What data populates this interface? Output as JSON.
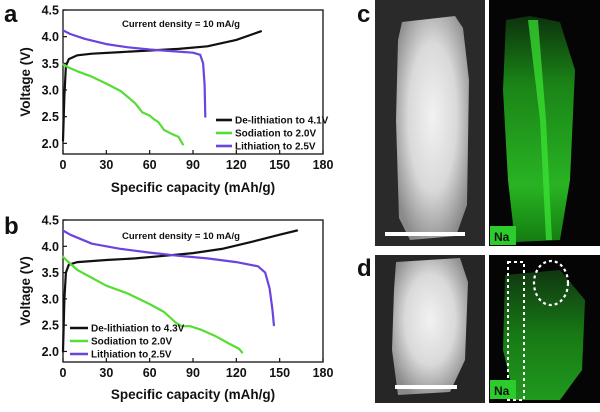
{
  "panels": {
    "a": {
      "letter": "a"
    },
    "b": {
      "letter": "b"
    },
    "c": {
      "letter": "c"
    },
    "d": {
      "letter": "d"
    }
  },
  "colors": {
    "delithiation": "#111111",
    "sodiation": "#55dd33",
    "lithiation": "#6a44dd",
    "na_map": "#22c81e",
    "na_tag": "#2bcc2b"
  },
  "micrographs": {
    "c": {
      "element_tag": "Na"
    },
    "d": {
      "element_tag": "Na"
    }
  },
  "chart_data": [
    {
      "id": "a",
      "type": "line",
      "annotation": "Current density = 10 mA/g",
      "xlabel": "Specific capacity (mAh/g)",
      "ylabel": "Voltage (V)",
      "xlim": [
        0,
        180
      ],
      "ylim": [
        1.8,
        4.5
      ],
      "xticks": [
        0,
        30,
        60,
        90,
        120,
        150,
        180
      ],
      "yticks": [
        2.0,
        2.5,
        3.0,
        3.5,
        4.0,
        4.5
      ],
      "ytick_labels": [
        "2.0",
        "2.5",
        "3.0",
        "3.5",
        "4.0",
        "4.5"
      ],
      "legend_position": "lower-right",
      "series": [
        {
          "name": "De-lithiation to 4.1V",
          "color_key": "delithiation",
          "points": [
            [
              0,
              2.05
            ],
            [
              1,
              2.9
            ],
            [
              2,
              3.45
            ],
            [
              4,
              3.58
            ],
            [
              10,
              3.65
            ],
            [
              20,
              3.68
            ],
            [
              40,
              3.71
            ],
            [
              60,
              3.74
            ],
            [
              80,
              3.77
            ],
            [
              100,
              3.82
            ],
            [
              120,
              3.94
            ],
            [
              137,
              4.1
            ]
          ]
        },
        {
          "name": "Sodiation to 2.0V",
          "color_key": "sodiation",
          "points": [
            [
              0,
              3.48
            ],
            [
              4,
              3.42
            ],
            [
              10,
              3.35
            ],
            [
              20,
              3.25
            ],
            [
              30,
              3.12
            ],
            [
              40,
              2.98
            ],
            [
              50,
              2.75
            ],
            [
              55,
              2.58
            ],
            [
              60,
              2.52
            ],
            [
              63,
              2.45
            ],
            [
              66,
              2.4
            ],
            [
              70,
              2.25
            ],
            [
              75,
              2.18
            ],
            [
              80,
              2.12
            ],
            [
              83,
              1.98
            ]
          ]
        },
        {
          "name": "Lithiation to 2.5V",
          "color_key": "lithiation",
          "points": [
            [
              0,
              4.12
            ],
            [
              5,
              4.05
            ],
            [
              15,
              3.96
            ],
            [
              30,
              3.86
            ],
            [
              45,
              3.8
            ],
            [
              60,
              3.76
            ],
            [
              75,
              3.73
            ],
            [
              90,
              3.7
            ],
            [
              95,
              3.66
            ],
            [
              97,
              3.5
            ],
            [
              98,
              3.1
            ],
            [
              98.5,
              2.5
            ]
          ]
        }
      ]
    },
    {
      "id": "b",
      "type": "line",
      "annotation": "Current density = 10 mA/g",
      "xlabel": "Specific capacity (mAh/g)",
      "ylabel": "Voltage (V)",
      "xlim": [
        0,
        180
      ],
      "ylim": [
        1.8,
        4.5
      ],
      "xticks": [
        0,
        30,
        60,
        90,
        120,
        150,
        180
      ],
      "yticks": [
        2.0,
        2.5,
        3.0,
        3.5,
        4.0,
        4.5
      ],
      "ytick_labels": [
        "2.0",
        "2.5",
        "3.0",
        "3.5",
        "4.0",
        "4.5"
      ],
      "legend_position": "lower-left",
      "series": [
        {
          "name": "De-lithiation to 4.3V",
          "color_key": "delithiation",
          "points": [
            [
              0,
              2.0
            ],
            [
              1,
              3.0
            ],
            [
              2,
              3.5
            ],
            [
              4,
              3.65
            ],
            [
              10,
              3.7
            ],
            [
              30,
              3.74
            ],
            [
              50,
              3.77
            ],
            [
              70,
              3.82
            ],
            [
              90,
              3.87
            ],
            [
              110,
              3.95
            ],
            [
              130,
              4.08
            ],
            [
              150,
              4.22
            ],
            [
              162,
              4.3
            ]
          ]
        },
        {
          "name": "Sodiation to 2.0V",
          "color_key": "sodiation",
          "points": [
            [
              0,
              3.8
            ],
            [
              3,
              3.72
            ],
            [
              10,
              3.55
            ],
            [
              20,
              3.4
            ],
            [
              30,
              3.25
            ],
            [
              45,
              3.1
            ],
            [
              60,
              2.9
            ],
            [
              70,
              2.75
            ],
            [
              78,
              2.55
            ],
            [
              82,
              2.48
            ],
            [
              88,
              2.48
            ],
            [
              95,
              2.42
            ],
            [
              105,
              2.3
            ],
            [
              115,
              2.15
            ],
            [
              122,
              2.05
            ],
            [
              124,
              1.98
            ]
          ]
        },
        {
          "name": "Lithiation to 2.5V",
          "color_key": "lithiation",
          "points": [
            [
              0,
              4.3
            ],
            [
              5,
              4.22
            ],
            [
              20,
              4.05
            ],
            [
              40,
              3.95
            ],
            [
              60,
              3.88
            ],
            [
              80,
              3.82
            ],
            [
              100,
              3.77
            ],
            [
              120,
              3.7
            ],
            [
              135,
              3.62
            ],
            [
              140,
              3.5
            ],
            [
              143,
              3.2
            ],
            [
              145,
              2.8
            ],
            [
              146,
              2.5
            ]
          ]
        }
      ]
    }
  ]
}
